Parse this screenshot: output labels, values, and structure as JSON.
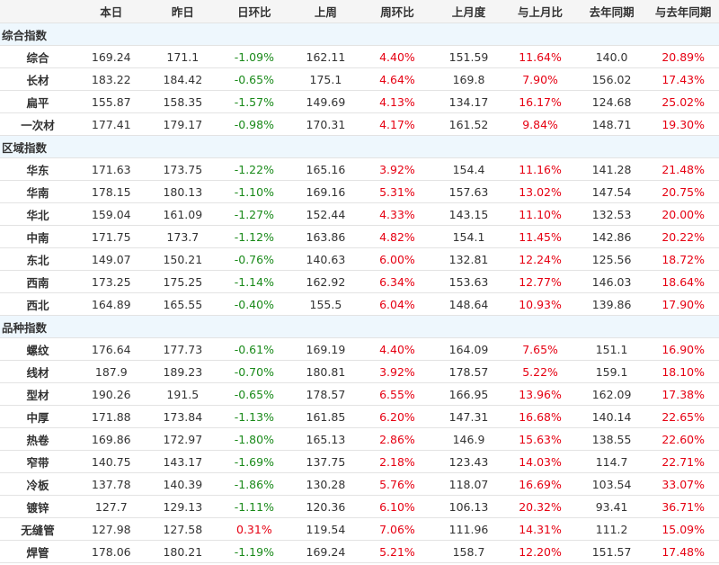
{
  "headers": [
    "",
    "本日",
    "昨日",
    "日环比",
    "上周",
    "周环比",
    "上月度",
    "与上月比",
    "去年同期",
    "与去年同期"
  ],
  "colors": {
    "up": "#e60012",
    "down": "#1a8a1a",
    "section_bg": "#eef7fd",
    "header_bg": "#f5f5f5"
  },
  "sections": [
    {
      "title": "综合指数",
      "rows": [
        [
          "综合",
          "169.24",
          "171.1",
          "-1.09%",
          "162.11",
          "4.40%",
          "151.59",
          "11.64%",
          "140.0",
          "20.89%"
        ],
        [
          "长材",
          "183.22",
          "184.42",
          "-0.65%",
          "175.1",
          "4.64%",
          "169.8",
          "7.90%",
          "156.02",
          "17.43%"
        ],
        [
          "扁平",
          "155.87",
          "158.35",
          "-1.57%",
          "149.69",
          "4.13%",
          "134.17",
          "16.17%",
          "124.68",
          "25.02%"
        ],
        [
          "一次材",
          "177.41",
          "179.17",
          "-0.98%",
          "170.31",
          "4.17%",
          "161.52",
          "9.84%",
          "148.71",
          "19.30%"
        ]
      ]
    },
    {
      "title": "区域指数",
      "rows": [
        [
          "华东",
          "171.63",
          "173.75",
          "-1.22%",
          "165.16",
          "3.92%",
          "154.4",
          "11.16%",
          "141.28",
          "21.48%"
        ],
        [
          "华南",
          "178.15",
          "180.13",
          "-1.10%",
          "169.16",
          "5.31%",
          "157.63",
          "13.02%",
          "147.54",
          "20.75%"
        ],
        [
          "华北",
          "159.04",
          "161.09",
          "-1.27%",
          "152.44",
          "4.33%",
          "143.15",
          "11.10%",
          "132.53",
          "20.00%"
        ],
        [
          "中南",
          "171.75",
          "173.7",
          "-1.12%",
          "163.86",
          "4.82%",
          "154.1",
          "11.45%",
          "142.86",
          "20.22%"
        ],
        [
          "东北",
          "149.07",
          "150.21",
          "-0.76%",
          "140.63",
          "6.00%",
          "132.81",
          "12.24%",
          "125.56",
          "18.72%"
        ],
        [
          "西南",
          "173.25",
          "175.25",
          "-1.14%",
          "162.92",
          "6.34%",
          "153.63",
          "12.77%",
          "146.03",
          "18.64%"
        ],
        [
          "西北",
          "164.89",
          "165.55",
          "-0.40%",
          "155.5",
          "6.04%",
          "148.64",
          "10.93%",
          "139.86",
          "17.90%"
        ]
      ]
    },
    {
      "title": "品种指数",
      "rows": [
        [
          "螺纹",
          "176.64",
          "177.73",
          "-0.61%",
          "169.19",
          "4.40%",
          "164.09",
          "7.65%",
          "151.1",
          "16.90%"
        ],
        [
          "线材",
          "187.9",
          "189.23",
          "-0.70%",
          "180.81",
          "3.92%",
          "178.57",
          "5.22%",
          "159.1",
          "18.10%"
        ],
        [
          "型材",
          "190.26",
          "191.5",
          "-0.65%",
          "178.57",
          "6.55%",
          "166.95",
          "13.96%",
          "162.09",
          "17.38%"
        ],
        [
          "中厚",
          "171.88",
          "173.84",
          "-1.13%",
          "161.85",
          "6.20%",
          "147.31",
          "16.68%",
          "140.14",
          "22.65%"
        ],
        [
          "热卷",
          "169.86",
          "172.97",
          "-1.80%",
          "165.13",
          "2.86%",
          "146.9",
          "15.63%",
          "138.55",
          "22.60%"
        ],
        [
          "窄带",
          "140.75",
          "143.17",
          "-1.69%",
          "137.75",
          "2.18%",
          "123.43",
          "14.03%",
          "114.7",
          "22.71%"
        ],
        [
          "冷板",
          "137.78",
          "140.39",
          "-1.86%",
          "130.28",
          "5.76%",
          "118.07",
          "16.69%",
          "103.54",
          "33.07%"
        ],
        [
          "镀锌",
          "127.7",
          "129.13",
          "-1.11%",
          "120.36",
          "6.10%",
          "106.13",
          "20.32%",
          "93.41",
          "36.71%"
        ],
        [
          "无缝管",
          "127.98",
          "127.58",
          "0.31%",
          "119.54",
          "7.06%",
          "111.96",
          "14.31%",
          "111.2",
          "15.09%"
        ],
        [
          "焊管",
          "178.06",
          "180.21",
          "-1.19%",
          "169.24",
          "5.21%",
          "158.7",
          "12.20%",
          "151.57",
          "17.48%"
        ]
      ]
    }
  ]
}
